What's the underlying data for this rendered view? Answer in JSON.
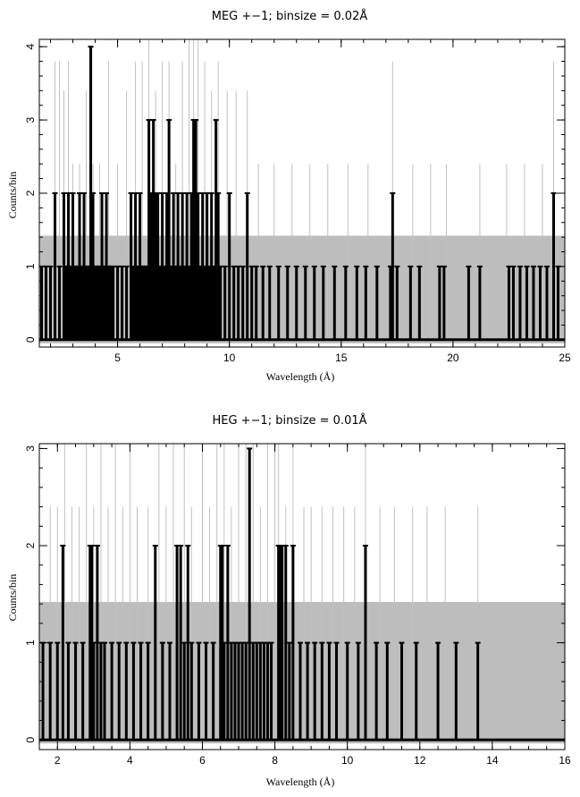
{
  "chart_data": [
    {
      "type": "line",
      "title": "MEG +−1; binsize = 0.02Å",
      "xlabel": "Wavelength (Å)",
      "ylabel": "Counts/bin",
      "xlim": [
        1.5,
        25
      ],
      "ylim": [
        -0.1,
        4.1
      ],
      "xticks": [
        5,
        10,
        15,
        20,
        25
      ],
      "yticks": [
        0,
        1,
        2,
        3,
        4
      ],
      "grid": false,
      "legend": "none",
      "colors": {
        "counts": "#000000",
        "errors": "#c0c0c0",
        "background": "#bdbdbd"
      },
      "series": [
        {
          "style": "error-band",
          "x": [
            1.5,
            20.3,
            20.3,
            25
          ],
          "y": [
            1.42,
            1.42,
            1.42,
            1.42
          ]
        },
        {
          "style": "error-spikes",
          "x": [
            2.2,
            2.4,
            2.6,
            2.8,
            3.0,
            3.3,
            3.6,
            3.9,
            4.2,
            4.6,
            5.0,
            5.4,
            5.8,
            6.1,
            6.4,
            6.7,
            7.0,
            7.3,
            7.6,
            7.9,
            8.2,
            8.4,
            8.6,
            8.9,
            9.2,
            9.5,
            9.9,
            10.3,
            10.8,
            11.3,
            12.0,
            12.8,
            13.6,
            14.4,
            15.3,
            16.2,
            17.3,
            18.2,
            19.0,
            19.7,
            21.2,
            22.4,
            23.2,
            24.0,
            24.5
          ],
          "y": [
            3.8,
            3.8,
            3.4,
            3.8,
            2.4,
            2.4,
            3.4,
            2.4,
            2.4,
            3.8,
            2.4,
            3.4,
            3.8,
            3.8,
            4.1,
            3.4,
            3.8,
            3.8,
            2.4,
            3.8,
            4.1,
            4.1,
            4.1,
            3.8,
            3.4,
            3.8,
            3.4,
            3.4,
            3.4,
            2.4,
            2.4,
            2.4,
            2.4,
            2.4,
            2.4,
            2.4,
            3.8,
            2.4,
            2.4,
            2.4,
            2.4,
            2.4,
            2.4,
            2.4,
            3.8
          ]
        },
        {
          "style": "counts",
          "x": [
            1.6,
            1.8,
            2.0,
            2.2,
            2.4,
            2.6,
            2.7,
            2.8,
            2.9,
            3.0,
            3.1,
            3.2,
            3.3,
            3.4,
            3.5,
            3.6,
            3.7,
            3.8,
            3.85,
            3.9,
            4.0,
            4.1,
            4.2,
            4.3,
            4.4,
            4.5,
            4.6,
            4.7,
            4.8,
            5.0,
            5.2,
            5.4,
            5.6,
            5.7,
            5.8,
            5.9,
            6.0,
            6.1,
            6.2,
            6.3,
            6.4,
            6.5,
            6.6,
            6.7,
            6.8,
            6.9,
            7.0,
            7.1,
            7.2,
            7.3,
            7.4,
            7.5,
            7.6,
            7.7,
            7.8,
            7.9,
            8.0,
            8.1,
            8.2,
            8.3,
            8.4,
            8.5,
            8.6,
            8.7,
            8.8,
            8.9,
            9.0,
            9.1,
            9.2,
            9.3,
            9.4,
            9.5,
            9.6,
            9.8,
            10.0,
            10.2,
            10.4,
            10.6,
            10.8,
            11.0,
            11.2,
            11.5,
            11.8,
            12.2,
            12.6,
            13.0,
            13.4,
            13.8,
            14.2,
            14.7,
            15.2,
            15.7,
            16.1,
            16.6,
            17.2,
            17.3,
            17.5,
            18.1,
            18.5,
            19.4,
            19.6,
            20.7,
            21.2,
            22.5,
            22.7,
            23.0,
            23.3,
            23.6,
            23.9,
            24.2,
            24.5,
            24.7
          ],
          "y": [
            1,
            1,
            1,
            2,
            1,
            2,
            1,
            2,
            1,
            2,
            1,
            1,
            2,
            1,
            2,
            1,
            1,
            4,
            1,
            2,
            1,
            1,
            1,
            2,
            1,
            2,
            1,
            1,
            1,
            1,
            1,
            1,
            2,
            1,
            2,
            1,
            2,
            1,
            1,
            1,
            3,
            2,
            3,
            2,
            2,
            1,
            2,
            1,
            2,
            3,
            1,
            2,
            1,
            2,
            1,
            2,
            1,
            2,
            1,
            2,
            3,
            3,
            2,
            1,
            2,
            1,
            2,
            1,
            2,
            1,
            3,
            2,
            1,
            1,
            2,
            1,
            1,
            1,
            2,
            1,
            1,
            1,
            1,
            1,
            1,
            1,
            1,
            1,
            1,
            1,
            1,
            1,
            1,
            1,
            1,
            2,
            1,
            1,
            1,
            1,
            1,
            1,
            1,
            1,
            1,
            1,
            1,
            1,
            1,
            1,
            2,
            1
          ]
        }
      ]
    },
    {
      "type": "line",
      "title": "HEG +−1; binsize = 0.01Å",
      "xlabel": "Wavelength (Å)",
      "ylabel": "Counts/bin",
      "xlim": [
        1.5,
        16
      ],
      "ylim": [
        -0.1,
        3.05
      ],
      "xticks": [
        2,
        4,
        6,
        8,
        10,
        12,
        14,
        16
      ],
      "yticks": [
        0,
        1,
        2,
        3
      ],
      "grid": false,
      "legend": "none",
      "colors": {
        "counts": "#000000",
        "errors": "#c0c0c0",
        "background": "#bdbdbd"
      },
      "series": [
        {
          "style": "error-band",
          "x": [
            1.5,
            16
          ],
          "y": [
            1.42,
            1.42
          ]
        },
        {
          "style": "error-spikes",
          "x": [
            1.8,
            2.0,
            2.2,
            2.4,
            2.6,
            2.8,
            3.0,
            3.2,
            3.4,
            3.6,
            3.8,
            4.0,
            4.2,
            4.5,
            4.8,
            5.0,
            5.2,
            5.5,
            5.7,
            6.0,
            6.2,
            6.4,
            6.6,
            6.8,
            7.0,
            7.2,
            7.4,
            7.6,
            7.8,
            8.0,
            8.1,
            8.3,
            8.5,
            8.8,
            9.0,
            9.3,
            9.6,
            9.9,
            10.2,
            10.5,
            10.9,
            11.3,
            11.8,
            12.2,
            12.7,
            13.6
          ],
          "y": [
            2.4,
            2.4,
            3.05,
            2.4,
            2.4,
            3.05,
            2.4,
            3.05,
            2.4,
            3.05,
            2.4,
            3.05,
            2.4,
            2.4,
            3.05,
            2.4,
            3.05,
            3.05,
            2.4,
            3.05,
            2.4,
            3.05,
            3.05,
            2.4,
            3.05,
            3.05,
            3.05,
            2.4,
            3.05,
            3.05,
            3.05,
            2.4,
            3.05,
            2.4,
            2.4,
            2.4,
            2.4,
            2.4,
            2.4,
            3.05,
            2.4,
            2.4,
            2.4,
            2.4,
            2.4,
            2.4
          ]
        },
        {
          "style": "counts",
          "x": [
            1.6,
            1.8,
            2.0,
            2.15,
            2.3,
            2.5,
            2.7,
            2.9,
            2.95,
            3.0,
            3.1,
            3.2,
            3.3,
            3.5,
            3.7,
            3.9,
            4.1,
            4.3,
            4.5,
            4.7,
            4.9,
            5.1,
            5.3,
            5.4,
            5.5,
            5.6,
            5.7,
            5.9,
            6.1,
            6.3,
            6.5,
            6.55,
            6.6,
            6.7,
            6.8,
            6.9,
            7.0,
            7.1,
            7.2,
            7.3,
            7.4,
            7.5,
            7.6,
            7.7,
            7.8,
            7.9,
            8.1,
            8.15,
            8.2,
            8.3,
            8.4,
            8.5,
            8.7,
            8.9,
            9.1,
            9.3,
            9.5,
            9.7,
            10.0,
            10.3,
            10.5,
            10.8,
            11.1,
            11.5,
            11.9,
            12.5,
            13.0,
            13.6
          ],
          "y": [
            1,
            1,
            1,
            2,
            1,
            1,
            1,
            2,
            2,
            1,
            2,
            1,
            1,
            1,
            1,
            1,
            1,
            1,
            1,
            2,
            1,
            1,
            2,
            2,
            1,
            2,
            1,
            1,
            1,
            1,
            2,
            2,
            1,
            2,
            1,
            1,
            1,
            1,
            1,
            3,
            1,
            1,
            1,
            1,
            1,
            1,
            2,
            2,
            2,
            2,
            1,
            2,
            1,
            1,
            1,
            1,
            1,
            1,
            1,
            1,
            2,
            1,
            1,
            1,
            1,
            1,
            1,
            1
          ]
        }
      ]
    }
  ]
}
